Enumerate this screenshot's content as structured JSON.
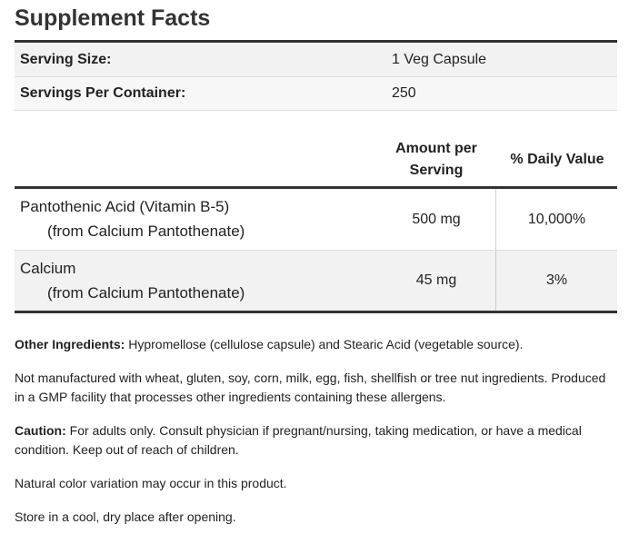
{
  "title": "Supplement Facts",
  "serving_info": [
    {
      "label": "Serving Size:",
      "value": "1 Veg Capsule"
    },
    {
      "label": "Servings Per Container:",
      "value": "250"
    }
  ],
  "table": {
    "headers": [
      "Amount per Serving",
      "% Daily Value"
    ],
    "rows": [
      {
        "name": "Pantothenic Acid (Vitamin B-5)",
        "source": "(from Calcium Pantothenate)",
        "amount": "500 mg",
        "daily_value": "10,000%"
      },
      {
        "name": "Calcium",
        "source": "(from Calcium Pantothenate)",
        "amount": "45 mg",
        "daily_value": "3%"
      }
    ]
  },
  "notes": [
    {
      "label": "Other Ingredients:",
      "text": "Hypromellose (cellulose capsule) and Stearic Acid (vegetable source)."
    },
    {
      "text": "Not manufactured with wheat, gluten, soy, corn, milk, egg, fish, shellfish or tree nut ingredients. Produced in a GMP facility that processes other ingredients containing these allergens."
    },
    {
      "label": "Caution:",
      "text": "For adults only. Consult physician if pregnant/nursing, taking medication, or have a medical condition. Keep out of reach of children."
    },
    {
      "text": "Natural color variation may occur in this product."
    },
    {
      "text": "Store in a cool, dry place after opening."
    }
  ]
}
